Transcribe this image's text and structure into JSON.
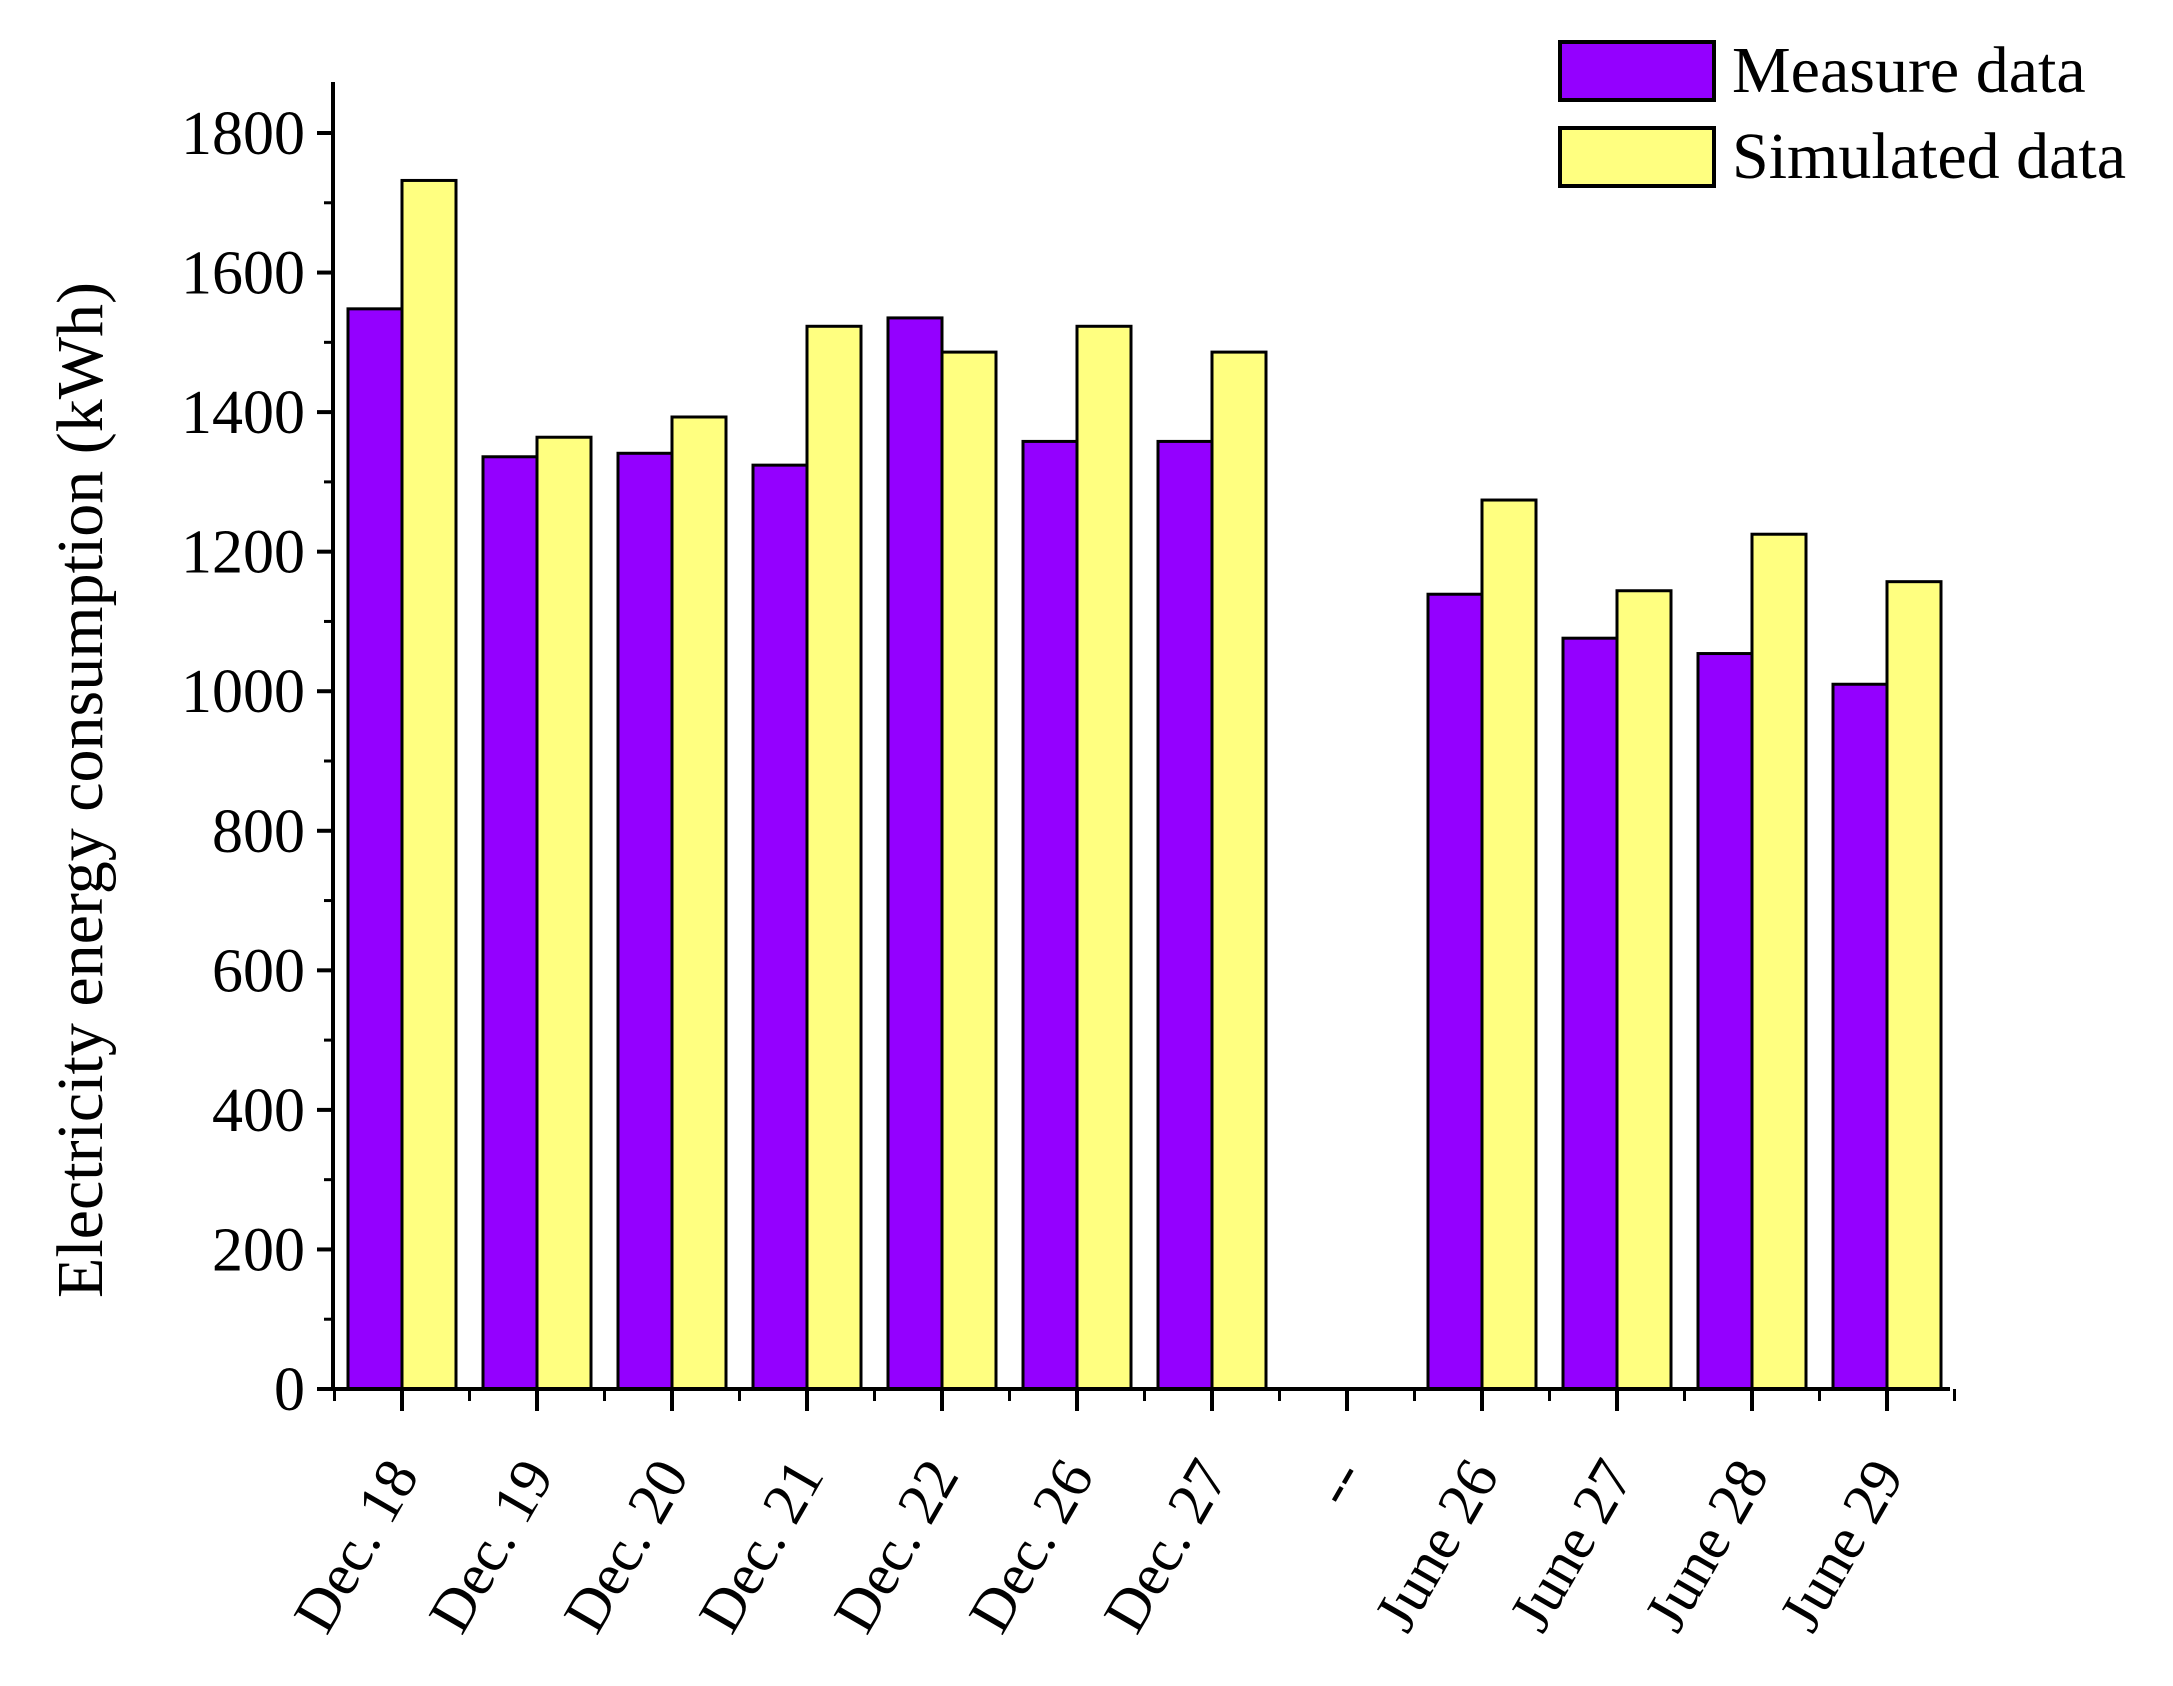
{
  "chart_data": {
    "type": "bar",
    "title": "",
    "xlabel": "",
    "ylabel": "Electricity energy consumption (kWh)",
    "ylim": [
      0,
      1800
    ],
    "yticks": [
      0,
      200,
      400,
      600,
      800,
      1000,
      1200,
      1400,
      1600,
      1800
    ],
    "grid": false,
    "legend_position": "top-right",
    "categories": [
      "Dec. 18",
      "Dec. 19",
      "Dec. 20",
      "Dec. 21",
      "Dec. 22",
      "Dec. 26",
      "Dec. 27",
      "--",
      "June 26",
      "June 27",
      "June 28",
      "June 29"
    ],
    "series": [
      {
        "name": "Measure data",
        "color": "#9400ff",
        "values": [
          1548,
          1336,
          1341,
          1324,
          1535,
          1358,
          1358,
          null,
          1139,
          1076,
          1054,
          1010
        ]
      },
      {
        "name": "Simulated data",
        "color": "#ffff80",
        "values": [
          1732,
          1364,
          1393,
          1523,
          1486,
          1523,
          1486,
          null,
          1274,
          1144,
          1225,
          1157
        ]
      }
    ]
  }
}
